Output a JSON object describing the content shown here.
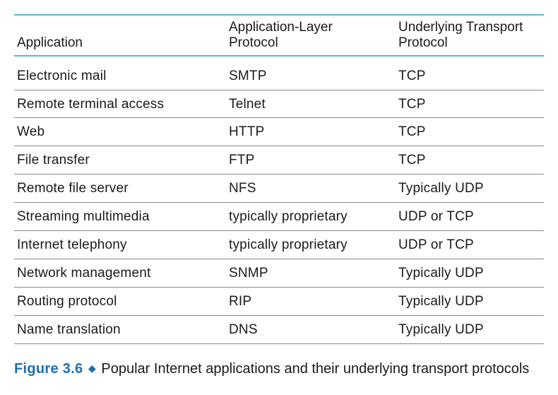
{
  "colors": {
    "header_border": "#5fb6d0",
    "row_border": "#888888",
    "text": "#1a1a1a",
    "accent": "#1c6fb3",
    "background": "#ffffff"
  },
  "table": {
    "columns": [
      {
        "label": "Application"
      },
      {
        "label": "Application-Layer\nProtocol"
      },
      {
        "label": "Underlying Transport\nProtocol"
      }
    ],
    "rows": [
      [
        "Electronic mail",
        "SMTP",
        "TCP"
      ],
      [
        "Remote terminal access",
        "Telnet",
        "TCP"
      ],
      [
        "Web",
        "HTTP",
        "TCP"
      ],
      [
        "File transfer",
        "FTP",
        "TCP"
      ],
      [
        "Remote file server",
        "NFS",
        "Typically UDP"
      ],
      [
        "Streaming multimedia",
        "typically proprietary",
        "UDP or TCP"
      ],
      [
        "Internet telephony",
        "typically proprietary",
        "UDP or TCP"
      ],
      [
        "Network management",
        "SNMP",
        "Typically UDP"
      ],
      [
        "Routing protocol",
        "RIP",
        "Typically UDP"
      ],
      [
        "Name translation",
        "DNS",
        "Typically UDP"
      ]
    ]
  },
  "caption": {
    "figure_label": "Figure 3.6",
    "bullet": "◆",
    "text": "Popular Internet applications and their underlying transport protocols"
  }
}
